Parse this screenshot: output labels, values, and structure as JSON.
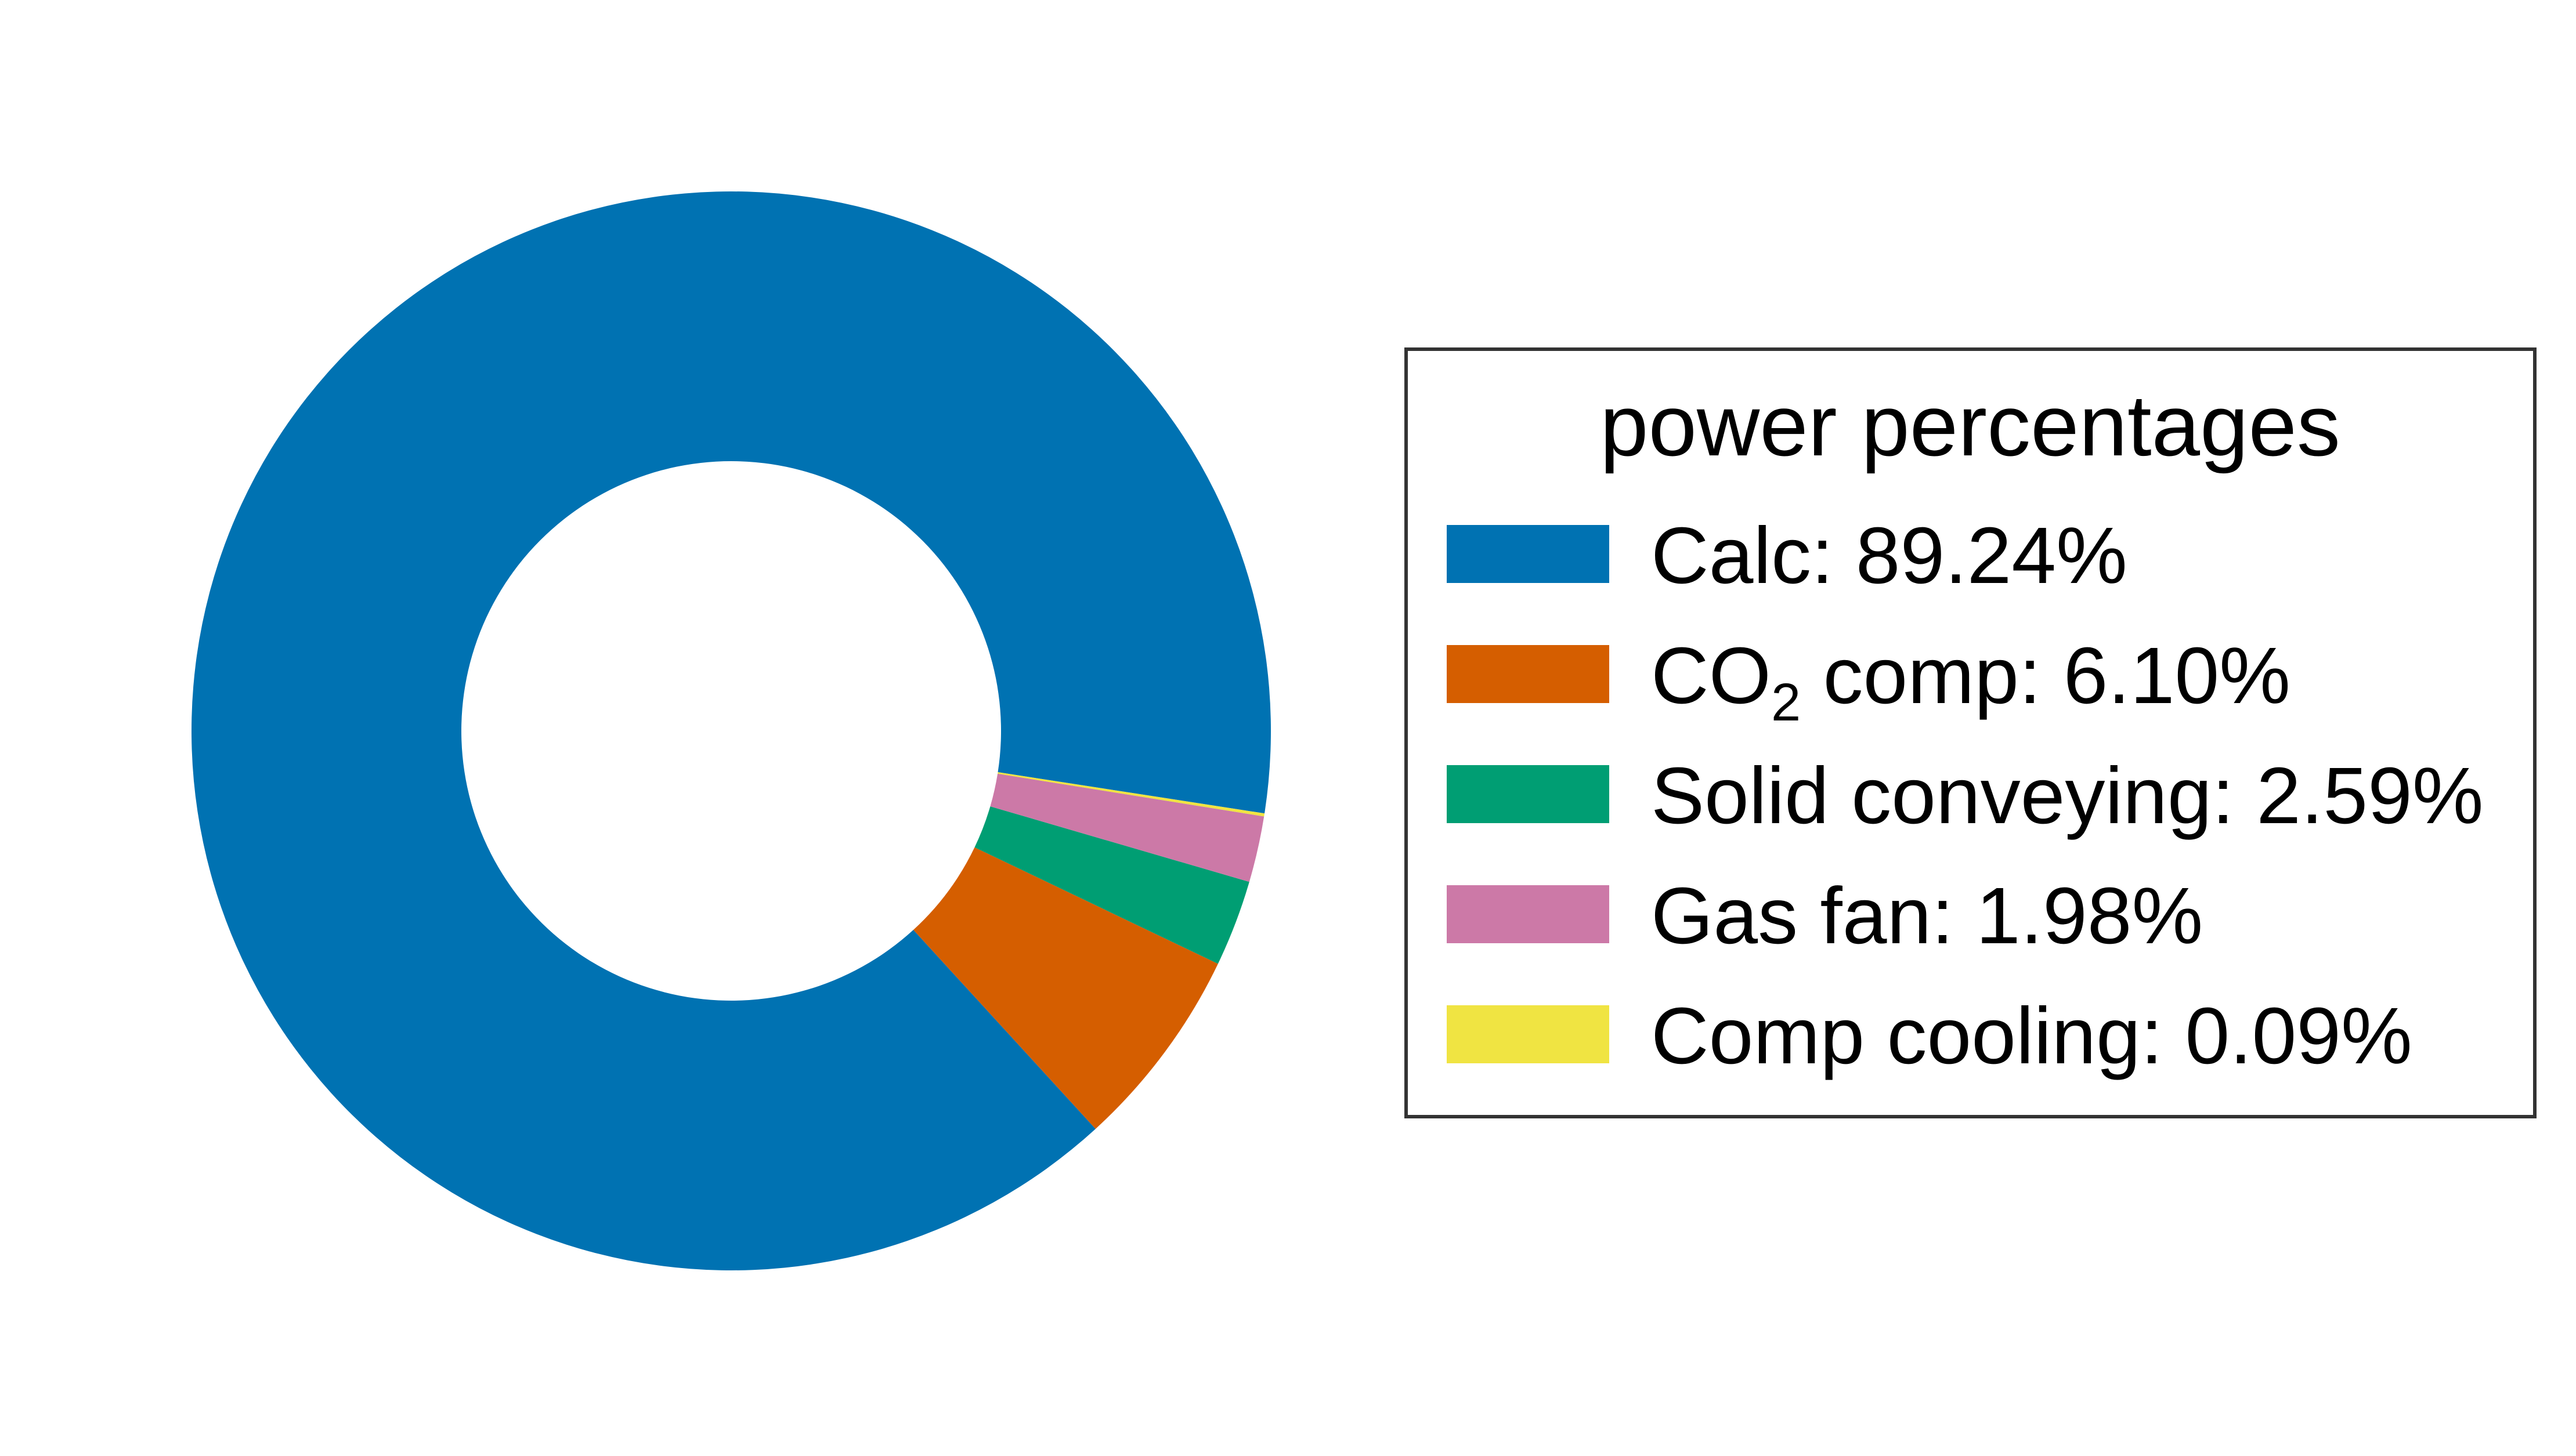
{
  "chart_data": {
    "type": "pie",
    "style": "donut",
    "legend_title": "power percentages",
    "legend_position": "right",
    "start_angle_deg": 0,
    "direction": "counterclockwise",
    "slices": [
      {
        "name": "Calc",
        "label_main": "Calc: 89.24%",
        "label_sub": "",
        "label_tail": "",
        "value": 89.24,
        "color": "#0072b2"
      },
      {
        "name": "CO2 comp",
        "label_main": "CO",
        "label_sub": "2",
        "label_tail": " comp: 6.10%",
        "value": 6.1,
        "color": "#d55e00"
      },
      {
        "name": "Solid conveying",
        "label_main": "Solid conveying: 2.59%",
        "label_sub": "",
        "label_tail": "",
        "value": 2.59,
        "color": "#009e73"
      },
      {
        "name": "Gas fan",
        "label_main": "Gas fan: 1.98%",
        "label_sub": "",
        "label_tail": "",
        "value": 1.98,
        "color": "#cc79a7"
      },
      {
        "name": "Comp cooling",
        "label_main": "Comp cooling: 0.09%",
        "label_sub": "",
        "label_tail": "",
        "value": 0.09,
        "color": "#f0e442"
      }
    ]
  }
}
